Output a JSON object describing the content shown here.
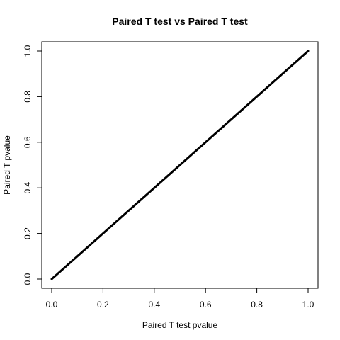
{
  "chart_data": {
    "type": "line",
    "title": "Paired T test vs Paired T test",
    "xlabel": "Paired T test pvalue",
    "ylabel": "Paired T pvalue",
    "xlim": [
      0,
      1
    ],
    "ylim": [
      0,
      1
    ],
    "xticks": [
      "0.0",
      "0.2",
      "0.4",
      "0.6",
      "0.8",
      "1.0"
    ],
    "yticks": [
      "0.0",
      "0.2",
      "0.4",
      "0.6",
      "0.8",
      "1.0"
    ],
    "grid": false,
    "series": [
      {
        "x": [
          0,
          1
        ],
        "y": [
          0,
          1
        ],
        "color": "#000000"
      }
    ]
  }
}
